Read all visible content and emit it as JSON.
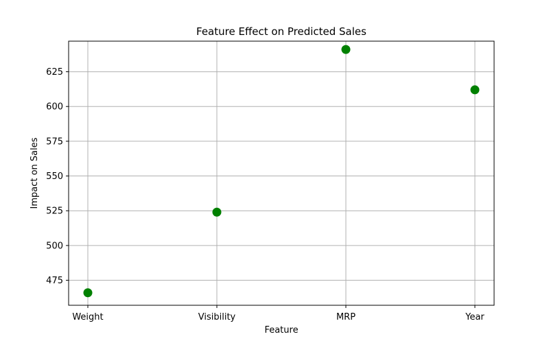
{
  "chart_data": {
    "type": "scatter",
    "title": "Feature Effect on Predicted Sales",
    "xlabel": "Feature",
    "ylabel": "Impact on Sales",
    "categories": [
      "Weight",
      "Visibility",
      "MRP",
      "Year"
    ],
    "values": [
      466,
      524,
      641,
      612
    ],
    "ylim": [
      457,
      647
    ],
    "yticks": [
      475,
      500,
      525,
      550,
      575,
      600,
      625
    ],
    "grid": true,
    "marker_color": "#008000"
  }
}
